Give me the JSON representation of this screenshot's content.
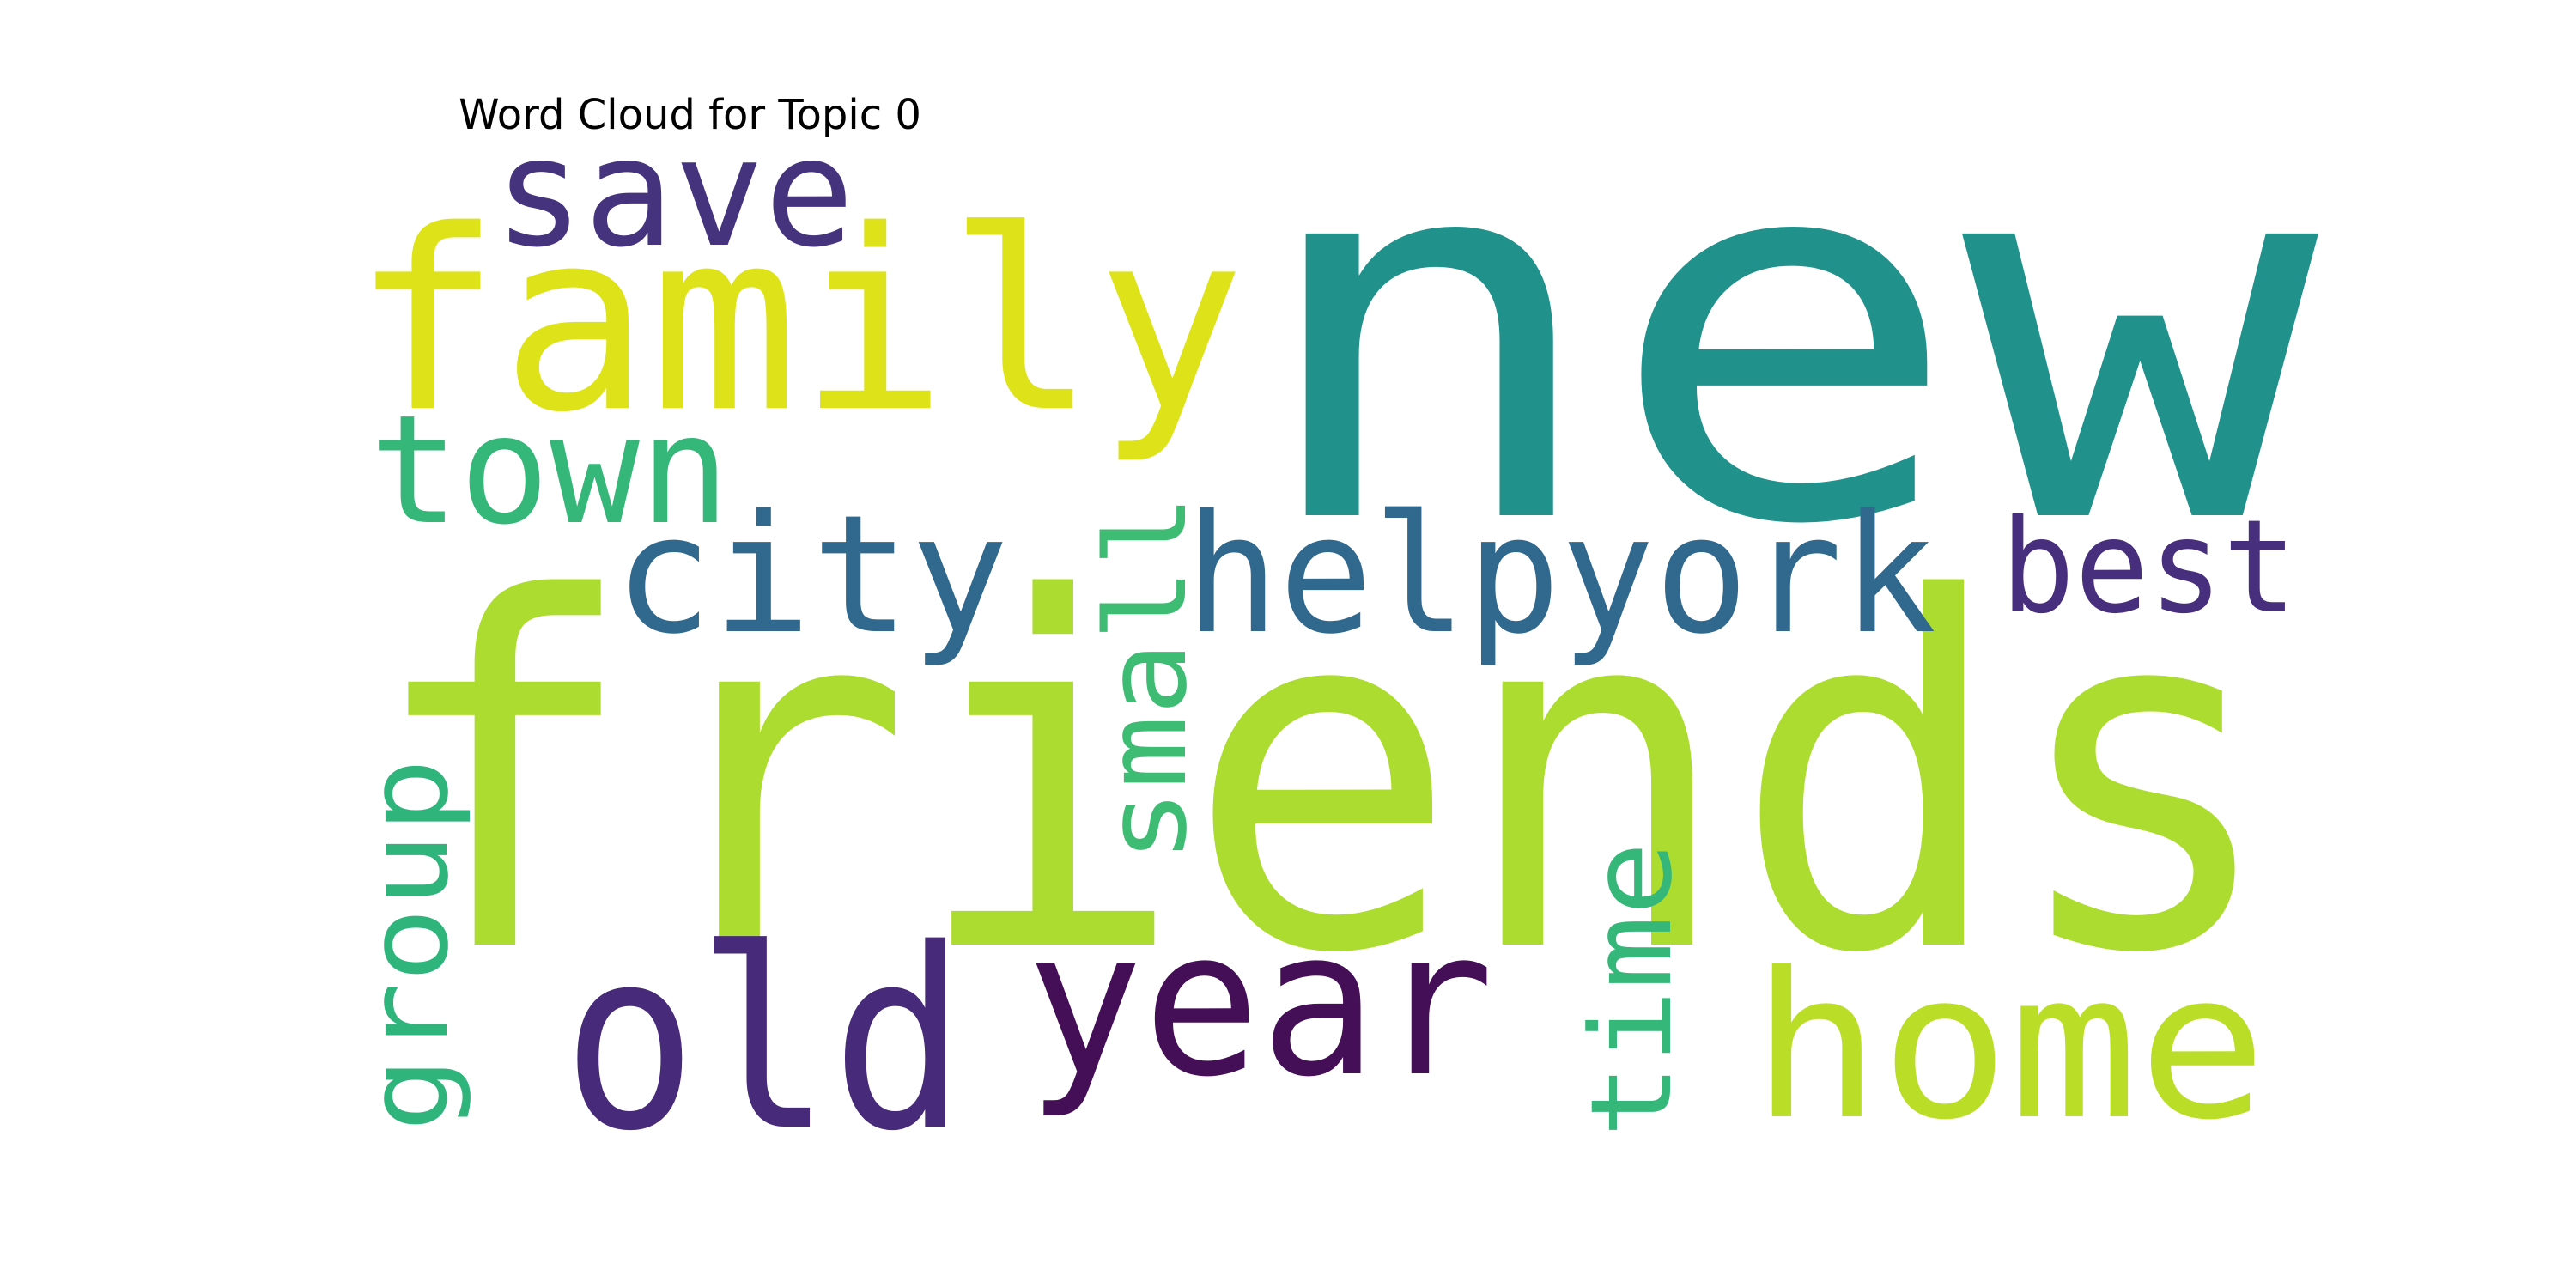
{
  "title": "Word Cloud for Topic 0",
  "words": [
    {
      "text": "new",
      "color": "#21918c"
    },
    {
      "text": "friends",
      "color": "#addc30"
    },
    {
      "text": "family",
      "color": "#dde318"
    },
    {
      "text": "save",
      "color": "#46337e"
    },
    {
      "text": "town",
      "color": "#35b779"
    },
    {
      "text": "city",
      "color": "#31688e"
    },
    {
      "text": "helpyork",
      "color": "#31688e"
    },
    {
      "text": "best",
      "color": "#472f7d"
    },
    {
      "text": "small",
      "color": "#3fbc73"
    },
    {
      "text": "group",
      "color": "#2fb47c"
    },
    {
      "text": "old",
      "color": "#472a7a"
    },
    {
      "text": "year",
      "color": "#440f57"
    },
    {
      "text": "time",
      "color": "#35b779"
    },
    {
      "text": "home",
      "color": "#bade28"
    }
  ]
}
